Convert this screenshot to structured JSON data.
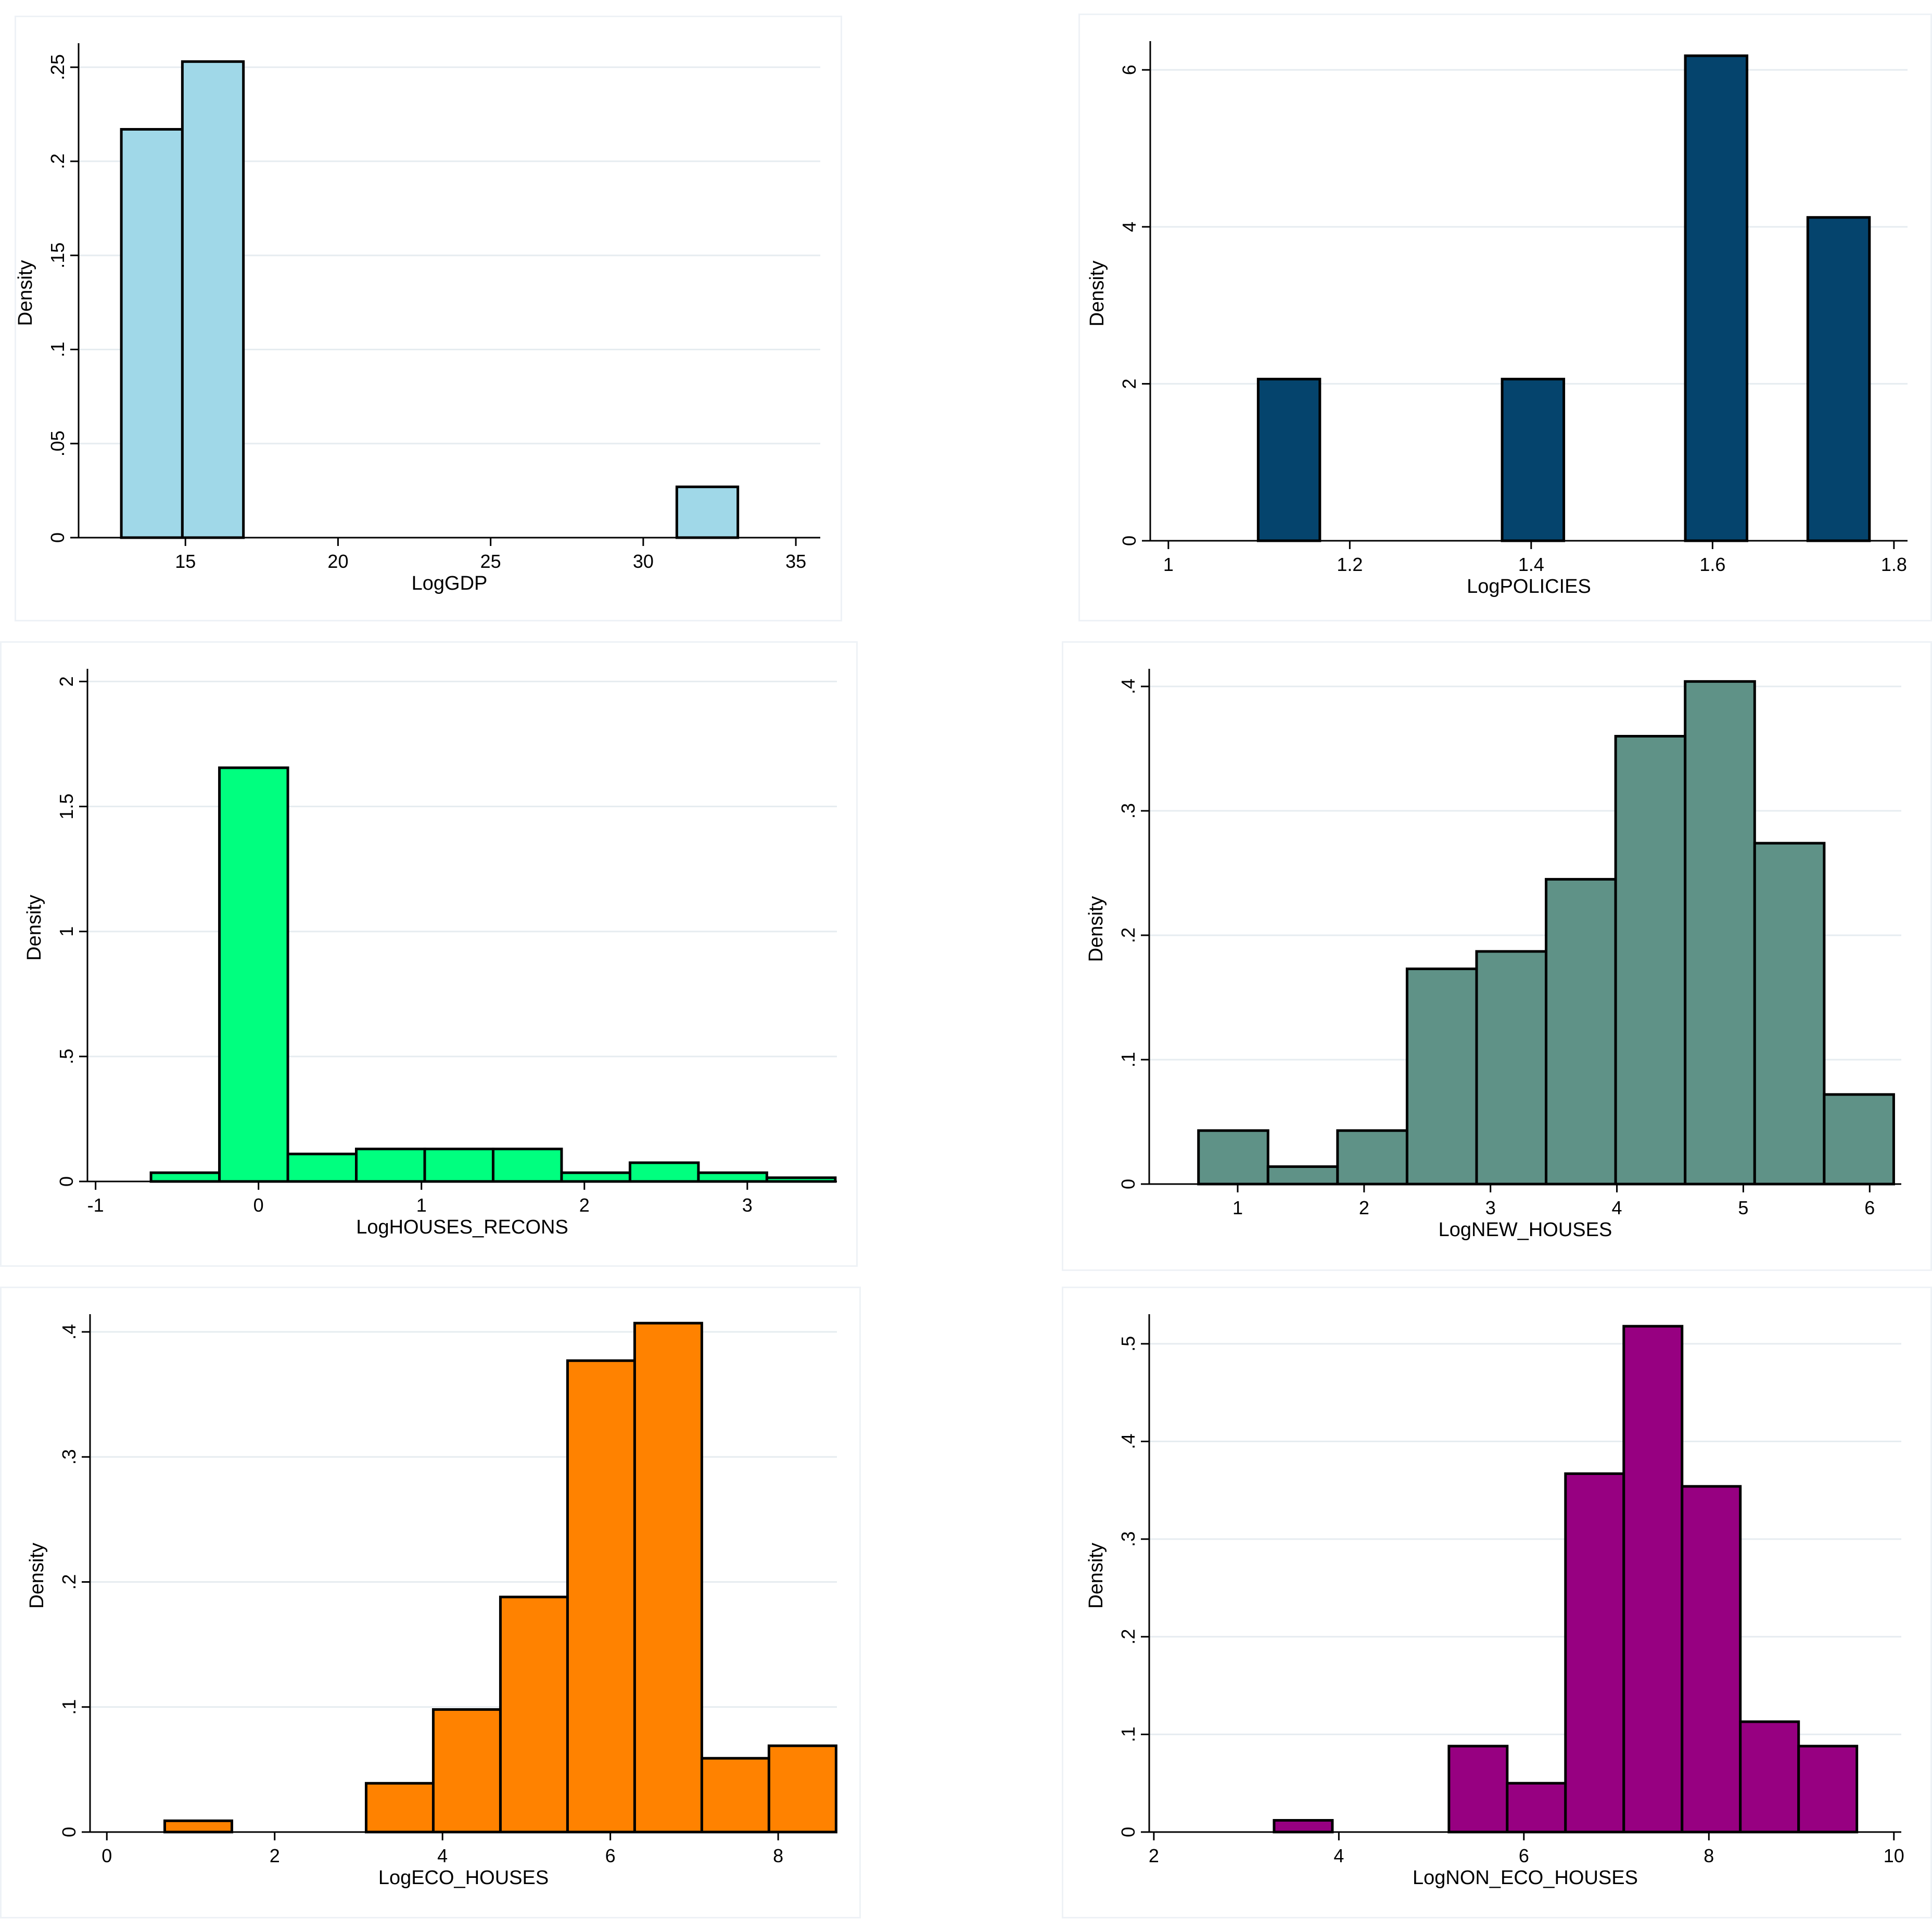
{
  "colors": {
    "grid": "#e6ecf0",
    "axis": "#000000",
    "bar_stroke": "#000000"
  },
  "chart_data": [
    {
      "type": "bar",
      "xlabel": "LogGDP",
      "ylabel": "Density",
      "xlim": [
        11.5,
        35.8
      ],
      "ylim": [
        0,
        0.26
      ],
      "xticks": [
        15,
        20,
        25,
        30,
        35
      ],
      "xtick_labels": [
        "15",
        "20",
        "25",
        "30",
        "35"
      ],
      "yticks": [
        0,
        0.05,
        0.1,
        0.15,
        0.2,
        0.25
      ],
      "ytick_labels": [
        "0",
        ".05",
        ".1",
        ".15",
        ".2",
        ".25"
      ],
      "grid": true,
      "color": "#a0d8e8",
      "bins": [
        {
          "x0": 12.9,
          "x1": 14.9,
          "value": 0.217
        },
        {
          "x0": 14.9,
          "x1": 16.9,
          "value": 0.253
        },
        {
          "x0": 31.1,
          "x1": 33.1,
          "value": 0.027
        }
      ]
    },
    {
      "type": "bar",
      "xlabel": "LogPOLICIES",
      "ylabel": "Density",
      "xlim": [
        0.98,
        1.815
      ],
      "ylim": [
        0,
        6.3
      ],
      "xticks": [
        1,
        1.2,
        1.4,
        1.6,
        1.8
      ],
      "xtick_labels": [
        "1",
        "1.2",
        "1.4",
        "1.6",
        "1.8"
      ],
      "yticks": [
        0,
        2,
        4,
        6
      ],
      "ytick_labels": [
        "0",
        "2",
        "4",
        "6"
      ],
      "grid": true,
      "color": "#05446d",
      "bins": [
        {
          "x0": 1.099,
          "x1": 1.167,
          "value": 2.06
        },
        {
          "x0": 1.368,
          "x1": 1.436,
          "value": 2.06
        },
        {
          "x0": 1.57,
          "x1": 1.638,
          "value": 6.18
        },
        {
          "x0": 1.705,
          "x1": 1.773,
          "value": 4.12
        }
      ]
    },
    {
      "type": "bar",
      "xlabel": "LogHOUSES_RECONS",
      "ylabel": "Density",
      "xlim": [
        -1.05,
        3.55
      ],
      "ylim": [
        0,
        2.03
      ],
      "xticks": [
        -1,
        0,
        1,
        2,
        3
      ],
      "xtick_labels": [
        "-1",
        "0",
        "1",
        "2",
        "3"
      ],
      "yticks": [
        0,
        0.5,
        1,
        1.5,
        2
      ],
      "ytick_labels": [
        "0",
        ".5",
        "1",
        "1.5",
        "2"
      ],
      "grid": true,
      "color": "#00ff7f",
      "bins": [
        {
          "x0": -0.66,
          "x1": -0.24,
          "value": 0.035
        },
        {
          "x0": -0.24,
          "x1": 0.18,
          "value": 1.655
        },
        {
          "x0": 0.18,
          "x1": 0.6,
          "value": 0.11
        },
        {
          "x0": 0.6,
          "x1": 1.02,
          "value": 0.13
        },
        {
          "x0": 1.02,
          "x1": 1.44,
          "value": 0.13
        },
        {
          "x0": 1.44,
          "x1": 1.86,
          "value": 0.13
        },
        {
          "x0": 1.86,
          "x1": 2.28,
          "value": 0.035
        },
        {
          "x0": 2.28,
          "x1": 2.7,
          "value": 0.075
        },
        {
          "x0": 2.7,
          "x1": 3.12,
          "value": 0.035
        },
        {
          "x0": 3.12,
          "x1": 3.54,
          "value": 0.015
        }
      ]
    },
    {
      "type": "bar",
      "xlabel": "LogNEW_HOUSES",
      "ylabel": "Density",
      "xlim": [
        0.3,
        6.25
      ],
      "ylim": [
        0,
        0.41
      ],
      "xticks": [
        1,
        2,
        3,
        4,
        5,
        6
      ],
      "xtick_labels": [
        "1",
        "2",
        "3",
        "4",
        "5",
        "6"
      ],
      "yticks": [
        0,
        0.1,
        0.2,
        0.3,
        0.4
      ],
      "ytick_labels": [
        "0",
        ".1",
        ".2",
        ".3",
        ".4"
      ],
      "grid": true,
      "color": "#5f9287",
      "bins": [
        {
          "x0": 0.69,
          "x1": 1.24,
          "value": 0.043
        },
        {
          "x0": 1.24,
          "x1": 1.79,
          "value": 0.014
        },
        {
          "x0": 1.79,
          "x1": 2.34,
          "value": 0.043
        },
        {
          "x0": 2.34,
          "x1": 2.89,
          "value": 0.173
        },
        {
          "x0": 2.89,
          "x1": 3.44,
          "value": 0.187
        },
        {
          "x0": 3.44,
          "x1": 3.99,
          "value": 0.245
        },
        {
          "x0": 3.99,
          "x1": 4.54,
          "value": 0.36
        },
        {
          "x0": 4.54,
          "x1": 5.09,
          "value": 0.404
        },
        {
          "x0": 5.09,
          "x1": 5.64,
          "value": 0.274
        },
        {
          "x0": 5.64,
          "x1": 6.19,
          "value": 0.072
        }
      ]
    },
    {
      "type": "bar",
      "xlabel": "LogECO_HOUSES",
      "ylabel": "Density",
      "xlim": [
        -0.2,
        8.7
      ],
      "ylim": [
        0,
        0.41
      ],
      "xticks": [
        0,
        2,
        4,
        6,
        8
      ],
      "xtick_labels": [
        "0",
        "2",
        "4",
        "6",
        "8"
      ],
      "yticks": [
        0,
        0.1,
        0.2,
        0.3,
        0.4
      ],
      "ytick_labels": [
        "0",
        ".1",
        ".2",
        ".3",
        ".4"
      ],
      "grid": true,
      "color": "#ff8200",
      "bins": [
        {
          "x0": 0.69,
          "x1": 1.49,
          "value": 0.009
        },
        {
          "x0": 3.09,
          "x1": 3.89,
          "value": 0.039
        },
        {
          "x0": 3.89,
          "x1": 4.69,
          "value": 0.098
        },
        {
          "x0": 4.69,
          "x1": 5.49,
          "value": 0.188
        },
        {
          "x0": 5.49,
          "x1": 6.29,
          "value": 0.377
        },
        {
          "x0": 6.29,
          "x1": 7.09,
          "value": 0.407
        },
        {
          "x0": 7.09,
          "x1": 7.89,
          "value": 0.059
        },
        {
          "x0": 7.89,
          "x1": 8.69,
          "value": 0.069
        }
      ]
    },
    {
      "type": "bar",
      "xlabel": "LogNON_ECO_HOUSES",
      "ylabel": "Density",
      "xlim": [
        1.95,
        10.08
      ],
      "ylim": [
        0,
        0.525
      ],
      "xticks": [
        2,
        4,
        6,
        8,
        10
      ],
      "xtick_labels": [
        "2",
        "4",
        "6",
        "8",
        "10"
      ],
      "yticks": [
        0,
        0.1,
        0.2,
        0.3,
        0.4,
        0.5
      ],
      "ytick_labels": [
        "0",
        ".1",
        ".2",
        ".3",
        ".4",
        ".5"
      ],
      "grid": true,
      "color": "#970081",
      "bins": [
        {
          "x0": 3.3,
          "x1": 3.93,
          "value": 0.012
        },
        {
          "x0": 5.19,
          "x1": 5.82,
          "value": 0.088
        },
        {
          "x0": 5.82,
          "x1": 6.45,
          "value": 0.05
        },
        {
          "x0": 6.45,
          "x1": 7.08,
          "value": 0.367
        },
        {
          "x0": 7.08,
          "x1": 7.71,
          "value": 0.518
        },
        {
          "x0": 7.71,
          "x1": 8.34,
          "value": 0.354
        },
        {
          "x0": 8.34,
          "x1": 8.97,
          "value": 0.113
        },
        {
          "x0": 8.97,
          "x1": 9.6,
          "value": 0.088
        }
      ]
    }
  ]
}
